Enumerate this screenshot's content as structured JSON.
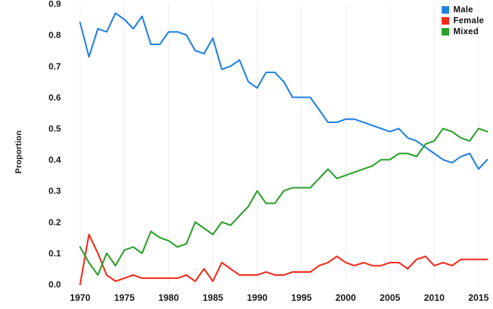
{
  "chart_data": {
    "type": "line",
    "title": "",
    "xlabel": "",
    "ylabel": "Proportion",
    "grid": "faint-vertical-only",
    "legend_position": "top-right",
    "ylim": [
      0.0,
      0.9
    ],
    "x_ticks": [
      1970,
      1975,
      1980,
      1985,
      1990,
      1995,
      2000,
      2005,
      2010,
      2015
    ],
    "y_ticks": [
      0.0,
      0.1,
      0.2,
      0.3,
      0.4,
      0.5,
      0.6,
      0.7,
      0.8,
      0.9
    ],
    "x": [
      1970,
      1971,
      1972,
      1973,
      1974,
      1975,
      1976,
      1977,
      1978,
      1979,
      1980,
      1981,
      1982,
      1983,
      1984,
      1985,
      1986,
      1987,
      1988,
      1989,
      1990,
      1991,
      1992,
      1993,
      1994,
      1995,
      1996,
      1997,
      1998,
      1999,
      2000,
      2001,
      2002,
      2003,
      2004,
      2005,
      2006,
      2007,
      2008,
      2009,
      2010,
      2011,
      2012,
      2013,
      2014,
      2015,
      2016
    ],
    "series": [
      {
        "name": "Male",
        "color": "#2381e2",
        "values": [
          0.84,
          0.73,
          0.82,
          0.81,
          0.87,
          0.85,
          0.82,
          0.86,
          0.77,
          0.77,
          0.81,
          0.81,
          0.8,
          0.75,
          0.74,
          0.79,
          0.69,
          0.7,
          0.72,
          0.65,
          0.63,
          0.68,
          0.68,
          0.65,
          0.6,
          0.6,
          0.6,
          0.56,
          0.52,
          0.52,
          0.53,
          0.53,
          0.52,
          0.51,
          0.5,
          0.49,
          0.5,
          0.47,
          0.46,
          0.44,
          0.42,
          0.4,
          0.39,
          0.41,
          0.42,
          0.37,
          0.4
        ]
      },
      {
        "name": "Female",
        "color": "#f22b1d",
        "values": [
          0.0,
          0.16,
          0.1,
          0.03,
          0.01,
          0.02,
          0.03,
          0.02,
          0.02,
          0.02,
          0.02,
          0.02,
          0.03,
          0.01,
          0.05,
          0.01,
          0.07,
          0.05,
          0.03,
          0.03,
          0.03,
          0.04,
          0.03,
          0.03,
          0.04,
          0.04,
          0.04,
          0.06,
          0.07,
          0.09,
          0.07,
          0.06,
          0.07,
          0.06,
          0.06,
          0.07,
          0.07,
          0.05,
          0.08,
          0.09,
          0.06,
          0.07,
          0.06,
          0.08,
          0.08,
          0.08,
          0.08
        ]
      },
      {
        "name": "Mixed",
        "color": "#2ca02c",
        "values": [
          0.12,
          0.07,
          0.03,
          0.1,
          0.06,
          0.11,
          0.12,
          0.1,
          0.17,
          0.15,
          0.14,
          0.12,
          0.13,
          0.2,
          0.18,
          0.16,
          0.2,
          0.19,
          0.22,
          0.25,
          0.3,
          0.26,
          0.26,
          0.3,
          0.31,
          0.31,
          0.31,
          0.34,
          0.37,
          0.34,
          0.35,
          0.36,
          0.37,
          0.38,
          0.4,
          0.4,
          0.42,
          0.42,
          0.41,
          0.45,
          0.46,
          0.5,
          0.49,
          0.47,
          0.46,
          0.5,
          0.49
        ]
      }
    ]
  },
  "legend": {
    "items": [
      "Male",
      "Female",
      "Mixed"
    ]
  }
}
